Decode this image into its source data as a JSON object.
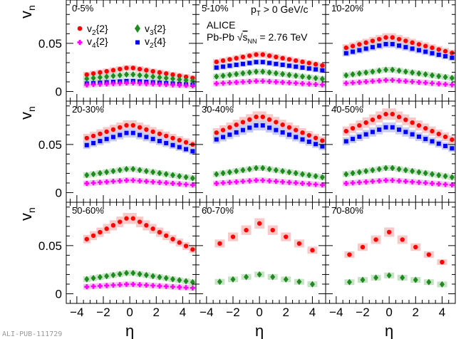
{
  "chart_data": {
    "type": "scatter",
    "title": "",
    "xlabel": "η",
    "ylabel": "v_n",
    "xlim": [
      -4.8,
      5.0
    ],
    "ylim": [
      -0.01,
      0.095
    ],
    "x_ticks": [
      -4,
      -2,
      0,
      2,
      4
    ],
    "x_tick_labels": [
      "−4",
      "−2",
      "0",
      "2",
      "4"
    ],
    "y_ticks": [
      0,
      0.05
    ],
    "y_tick_labels": [
      "0",
      "0.05"
    ],
    "eta": [
      -3.25,
      -2.75,
      -2.25,
      -1.75,
      -1.25,
      -0.75,
      -0.25,
      0.25,
      0.75,
      1.25,
      1.75,
      2.25,
      2.75,
      3.25,
      3.75,
      4.25,
      4.75
    ],
    "eta_coarse": [
      -3.0,
      -2.0,
      -1.0,
      0.0,
      1.0,
      2.0,
      3.0,
      4.0
    ],
    "legend": [
      {
        "key": "v22",
        "prefix": "v",
        "sub": "2",
        "suffix": "{2}",
        "color": "#ff0000",
        "marker": "circle"
      },
      {
        "key": "v32",
        "prefix": "v",
        "sub": "3",
        "suffix": "{2}",
        "color": "#1f8a1f",
        "marker": "diamond"
      },
      {
        "key": "v42",
        "prefix": "v",
        "sub": "4",
        "suffix": "{2}",
        "color": "#ff00ff",
        "marker": "cross"
      },
      {
        "key": "v24",
        "prefix": "v",
        "sub": "2",
        "suffix": "{4}",
        "color": "#0000ff",
        "marker": "square"
      }
    ],
    "band_colors": {
      "v22": "#f9c8c8",
      "v24": "#c9cdf5",
      "v32": "#c6e3c6",
      "v42": "#f4c6f0"
    },
    "panels": [
      {
        "centrality": "0-5%",
        "series": [
          {
            "key": "v22",
            "peak": 0.025,
            "edge": 0.014
          },
          {
            "key": "v24",
            "peak": 0.011,
            "edge": 0.007
          },
          {
            "key": "v32",
            "peak": 0.018,
            "edge": 0.011
          },
          {
            "key": "v42",
            "peak": 0.009,
            "edge": 0.006
          }
        ]
      },
      {
        "centrality": "5-10%",
        "series": [
          {
            "key": "v22",
            "peak": 0.039,
            "edge": 0.027
          },
          {
            "key": "v24",
            "peak": 0.031,
            "edge": 0.022
          },
          {
            "key": "v32",
            "peak": 0.021,
            "edge": 0.013
          },
          {
            "key": "v42",
            "peak": 0.011,
            "edge": 0.007
          }
        ]
      },
      {
        "centrality": "10-20%",
        "series": [
          {
            "key": "v22",
            "peak": 0.057,
            "edge": 0.04
          },
          {
            "key": "v24",
            "peak": 0.05,
            "edge": 0.035
          },
          {
            "key": "v32",
            "peak": 0.023,
            "edge": 0.014
          },
          {
            "key": "v42",
            "peak": 0.012,
            "edge": 0.007
          }
        ]
      },
      {
        "centrality": "20-30%",
        "series": [
          {
            "key": "v22",
            "peak": 0.071,
            "edge": 0.05
          },
          {
            "key": "v24",
            "peak": 0.063,
            "edge": 0.043
          },
          {
            "key": "v32",
            "peak": 0.025,
            "edge": 0.015
          },
          {
            "key": "v42",
            "peak": 0.013,
            "edge": 0.008
          }
        ]
      },
      {
        "centrality": "30-40%",
        "series": [
          {
            "key": "v22",
            "peak": 0.08,
            "edge": 0.054
          },
          {
            "key": "v24",
            "peak": 0.071,
            "edge": 0.048
          },
          {
            "key": "v32",
            "peak": 0.026,
            "edge": 0.016
          },
          {
            "key": "v42",
            "peak": 0.013,
            "edge": 0.008
          }
        ]
      },
      {
        "centrality": "40-50%",
        "series": [
          {
            "key": "v22",
            "peak": 0.083,
            "edge": 0.055
          },
          {
            "key": "v24",
            "peak": 0.069,
            "edge": 0.046
          },
          {
            "key": "v32",
            "peak": 0.026,
            "edge": 0.016
          },
          {
            "key": "v42",
            "peak": 0.013,
            "edge": 0.008
          }
        ]
      },
      {
        "centrality": "50-60%",
        "series": [
          {
            "key": "v22",
            "peak": 0.08,
            "edge": 0.046
          },
          {
            "key": "v32",
            "peak": 0.022,
            "edge": 0.012
          },
          {
            "key": "v42",
            "peak": 0.01,
            "edge": 0.006
          }
        ]
      },
      {
        "centrality": "60-70%",
        "series": [
          {
            "key": "v22",
            "peak": 0.073,
            "edge": 0.04,
            "coarse": true
          },
          {
            "key": "v32",
            "peak": 0.02,
            "edge": 0.008,
            "coarse": true
          }
        ]
      },
      {
        "centrality": "70-80%",
        "series": [
          {
            "key": "v22",
            "peak": 0.064,
            "edge": 0.027,
            "coarse": true
          },
          {
            "key": "v32",
            "peak": 0.019,
            "edge": 0.008,
            "coarse": true
          }
        ]
      }
    ]
  },
  "annotations": {
    "pt_prefix": "p",
    "pt_sub": "T",
    "pt_suffix": " > 0 GeV/c",
    "experiment": "ALICE",
    "system_prefix": "Pb-Pb ",
    "sqrt_sign": "√",
    "sqrt_s": "s",
    "sqrt_sub": "NN",
    "system_suffix": " = 2.76 TeV"
  },
  "footer": "ALI-PUB-111729"
}
